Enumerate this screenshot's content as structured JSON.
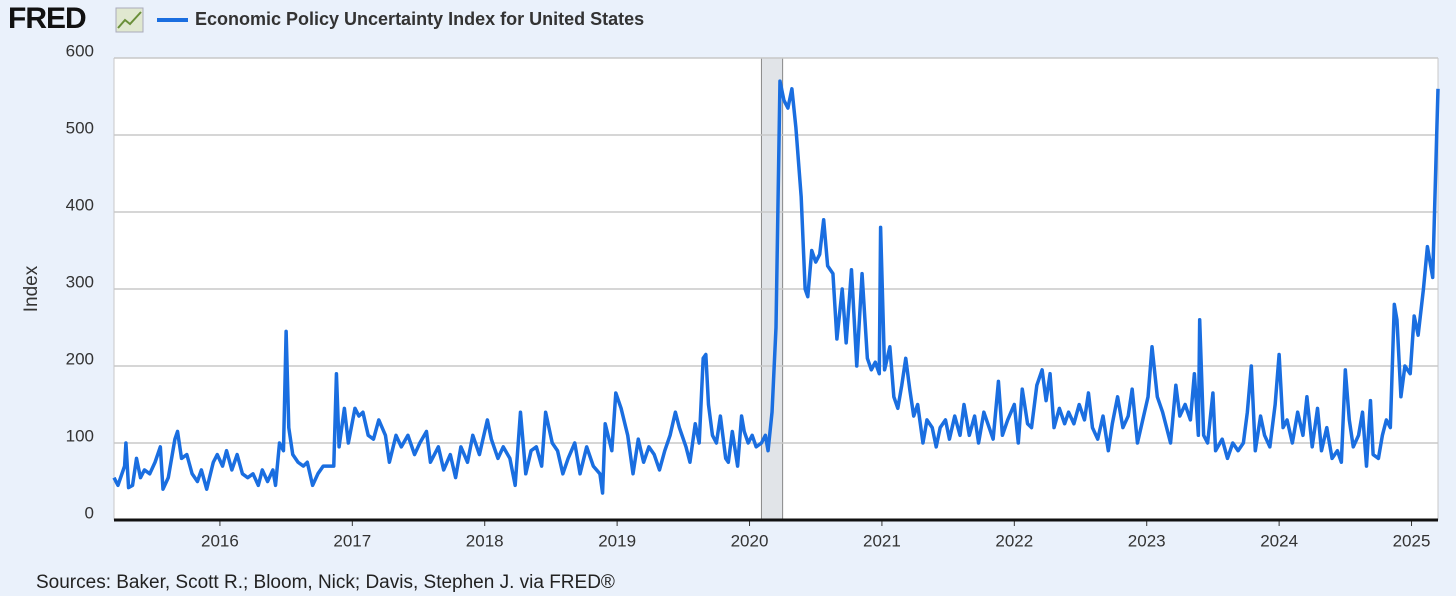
{
  "logo": "FRED",
  "chart_data": {
    "type": "line",
    "ylabel": "Index",
    "source": "Sources: Baker, Scott R.; Bloom, Nick; Davis, Stephen J. via FRED®",
    "x": [
      2015.2,
      2015.23,
      2015.28,
      2015.29,
      2015.31,
      2015.34,
      2015.37,
      2015.4,
      2015.43,
      2015.47,
      2015.51,
      2015.55,
      2015.57,
      2015.61,
      2015.66,
      2015.68,
      2015.71,
      2015.75,
      2015.79,
      2015.83,
      2015.86,
      2015.9,
      2015.95,
      2015.98,
      2016.02,
      2016.05,
      2016.09,
      2016.13,
      2016.17,
      2016.21,
      2016.25,
      2016.29,
      2016.32,
      2016.36,
      2016.4,
      2016.42,
      2016.45,
      2016.48,
      2016.5,
      2016.52,
      2016.55,
      2016.59,
      2016.63,
      2016.66,
      2016.7,
      2016.74,
      2016.78,
      2016.82,
      2016.86,
      2016.88,
      2016.9,
      2016.94,
      2016.97,
      2017.02,
      2017.05,
      2017.08,
      2017.12,
      2017.16,
      2017.2,
      2017.25,
      2017.28,
      2017.33,
      2017.37,
      2017.42,
      2017.47,
      2017.51,
      2017.56,
      2017.59,
      2017.65,
      2017.69,
      2017.74,
      2017.78,
      2017.82,
      2017.87,
      2017.91,
      2017.96,
      2018.02,
      2018.05,
      2018.1,
      2018.14,
      2018.19,
      2018.23,
      2018.27,
      2018.31,
      2018.35,
      2018.39,
      2018.43,
      2018.46,
      2018.51,
      2018.55,
      2018.59,
      2018.63,
      2018.68,
      2018.72,
      2018.77,
      2018.82,
      2018.87,
      2018.89,
      2018.91,
      2018.96,
      2018.99,
      2019.03,
      2019.08,
      2019.12,
      2019.16,
      2019.2,
      2019.24,
      2019.28,
      2019.32,
      2019.36,
      2019.4,
      2019.44,
      2019.47,
      2019.52,
      2019.55,
      2019.59,
      2019.62,
      2019.65,
      2019.67,
      2019.69,
      2019.72,
      2019.75,
      2019.78,
      2019.82,
      2019.84,
      2019.87,
      2019.91,
      2019.94,
      2019.96,
      2019.99,
      2020.02,
      2020.05,
      2020.09,
      2020.12,
      2020.14,
      2020.17,
      2020.2,
      2020.23,
      2020.26,
      2020.29,
      2020.32,
      2020.35,
      2020.39,
      2020.42,
      2020.44,
      2020.47,
      2020.5,
      2020.53,
      2020.56,
      2020.59,
      2020.63,
      2020.66,
      2020.7,
      2020.73,
      2020.77,
      2020.81,
      2020.85,
      2020.89,
      2020.92,
      2020.95,
      2020.98,
      2020.99,
      2021.02,
      2021.06,
      2021.09,
      2021.12,
      2021.15,
      2021.18,
      2021.21,
      2021.24,
      2021.27,
      2021.31,
      2021.34,
      2021.38,
      2021.41,
      2021.44,
      2021.48,
      2021.51,
      2021.55,
      2021.59,
      2021.62,
      2021.66,
      2021.7,
      2021.73,
      2021.77,
      2021.81,
      2021.84,
      2021.88,
      2021.91,
      2021.95,
      2022.0,
      2022.03,
      2022.06,
      2022.1,
      2022.13,
      2022.17,
      2022.21,
      2022.24,
      2022.27,
      2022.3,
      2022.34,
      2022.38,
      2022.41,
      2022.45,
      2022.49,
      2022.53,
      2022.56,
      2022.59,
      2022.63,
      2022.67,
      2022.71,
      2022.74,
      2022.78,
      2022.82,
      2022.86,
      2022.89,
      2022.93,
      2022.97,
      2023.01,
      2023.04,
      2023.08,
      2023.12,
      2023.15,
      2023.18,
      2023.22,
      2023.25,
      2023.29,
      2023.33,
      2023.36,
      2023.39,
      2023.4,
      2023.43,
      2023.46,
      2023.5,
      2023.52,
      2023.57,
      2023.61,
      2023.65,
      2023.69,
      2023.73,
      2023.76,
      2023.79,
      2023.82,
      2023.86,
      2023.89,
      2023.93,
      2023.97,
      2024.0,
      2024.03,
      2024.06,
      2024.1,
      2024.14,
      2024.18,
      2024.21,
      2024.25,
      2024.29,
      2024.32,
      2024.36,
      2024.4,
      2024.44,
      2024.47,
      2024.5,
      2024.53,
      2024.56,
      2024.6,
      2024.63,
      2024.66,
      2024.69,
      2024.71,
      2024.75,
      2024.78,
      2024.81,
      2024.84,
      2024.87,
      2024.89,
      2024.92,
      2024.95,
      2024.99,
      2025.02,
      2025.05,
      2025.09,
      2025.12,
      2025.16,
      2025.19,
      2025.2
    ],
    "series": [
      {
        "name": "Economic Policy Uncertainty Index for United States",
        "color": "#1a6ee0",
        "values": [
          55,
          45,
          70,
          100,
          42,
          45,
          80,
          55,
          65,
          60,
          75,
          95,
          40,
          55,
          105,
          115,
          80,
          85,
          60,
          50,
          65,
          40,
          75,
          85,
          70,
          90,
          65,
          85,
          60,
          55,
          60,
          45,
          65,
          50,
          65,
          45,
          100,
          90,
          245,
          120,
          85,
          75,
          70,
          75,
          45,
          60,
          70,
          70,
          70,
          190,
          95,
          145,
          100,
          145,
          135,
          140,
          110,
          105,
          130,
          110,
          75,
          110,
          95,
          110,
          85,
          100,
          115,
          75,
          95,
          65,
          85,
          55,
          95,
          75,
          110,
          85,
          130,
          105,
          80,
          95,
          80,
          45,
          140,
          60,
          90,
          95,
          70,
          140,
          100,
          90,
          60,
          80,
          100,
          60,
          95,
          70,
          60,
          35,
          125,
          90,
          165,
          145,
          110,
          60,
          105,
          75,
          95,
          85,
          65,
          90,
          110,
          140,
          120,
          95,
          75,
          125,
          100,
          210,
          215,
          150,
          110,
          100,
          135,
          80,
          75,
          115,
          70,
          135,
          115,
          100,
          110,
          95,
          100,
          110,
          90,
          140,
          250,
          570,
          545,
          535,
          560,
          510,
          420,
          300,
          290,
          350,
          335,
          345,
          390,
          330,
          320,
          235,
          300,
          230,
          325,
          200,
          320,
          210,
          195,
          205,
          190,
          380,
          195,
          225,
          160,
          145,
          175,
          210,
          170,
          135,
          150,
          100,
          130,
          120,
          95,
          120,
          130,
          105,
          135,
          110,
          150,
          110,
          135,
          100,
          140,
          120,
          105,
          180,
          110,
          130,
          150,
          100,
          170,
          125,
          120,
          175,
          195,
          155,
          190,
          120,
          145,
          125,
          140,
          125,
          150,
          130,
          165,
          120,
          105,
          135,
          90,
          125,
          160,
          120,
          135,
          170,
          100,
          130,
          160,
          225,
          160,
          140,
          120,
          100,
          175,
          135,
          150,
          130,
          190,
          110,
          260,
          110,
          100,
          165,
          90,
          105,
          80,
          100,
          90,
          100,
          140,
          200,
          90,
          135,
          110,
          95,
          150,
          215,
          120,
          130,
          100,
          140,
          110,
          160,
          95,
          145,
          90,
          120,
          80,
          90,
          75,
          195,
          130,
          95,
          110,
          140,
          70,
          155,
          85,
          80,
          110,
          130,
          120,
          280,
          260,
          160,
          200,
          190,
          265,
          240,
          300,
          355,
          315,
          500,
          560
        ]
      }
    ],
    "xlim": [
      2015.2,
      2025.2
    ],
    "xticks": [
      2016,
      2017,
      2018,
      2019,
      2020,
      2021,
      2022,
      2023,
      2024,
      2025
    ],
    "ylim": [
      0,
      600
    ],
    "yticks": [
      0,
      100,
      200,
      300,
      400,
      500,
      600
    ],
    "grid": true,
    "recessions": [
      [
        2020.09,
        2020.25
      ]
    ]
  }
}
